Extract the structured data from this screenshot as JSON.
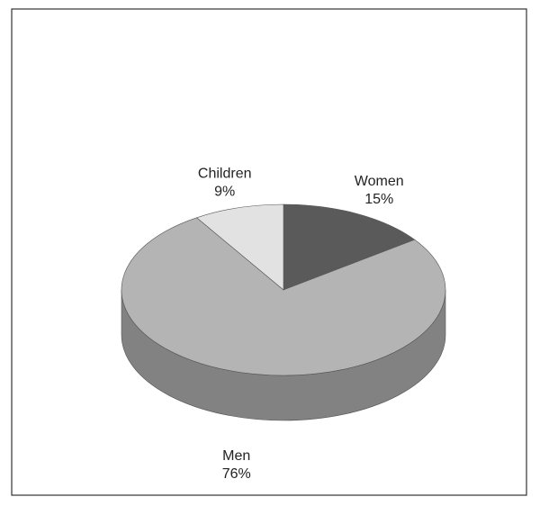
{
  "chart_data": {
    "type": "pie",
    "categories": [
      "Women",
      "Men",
      "Children"
    ],
    "values": [
      15,
      76,
      9
    ],
    "value_labels": [
      "15%",
      "76%",
      "9%"
    ],
    "colors": [
      "#5a5a5a",
      "#b4b4b4",
      "#e2e2e2"
    ]
  }
}
